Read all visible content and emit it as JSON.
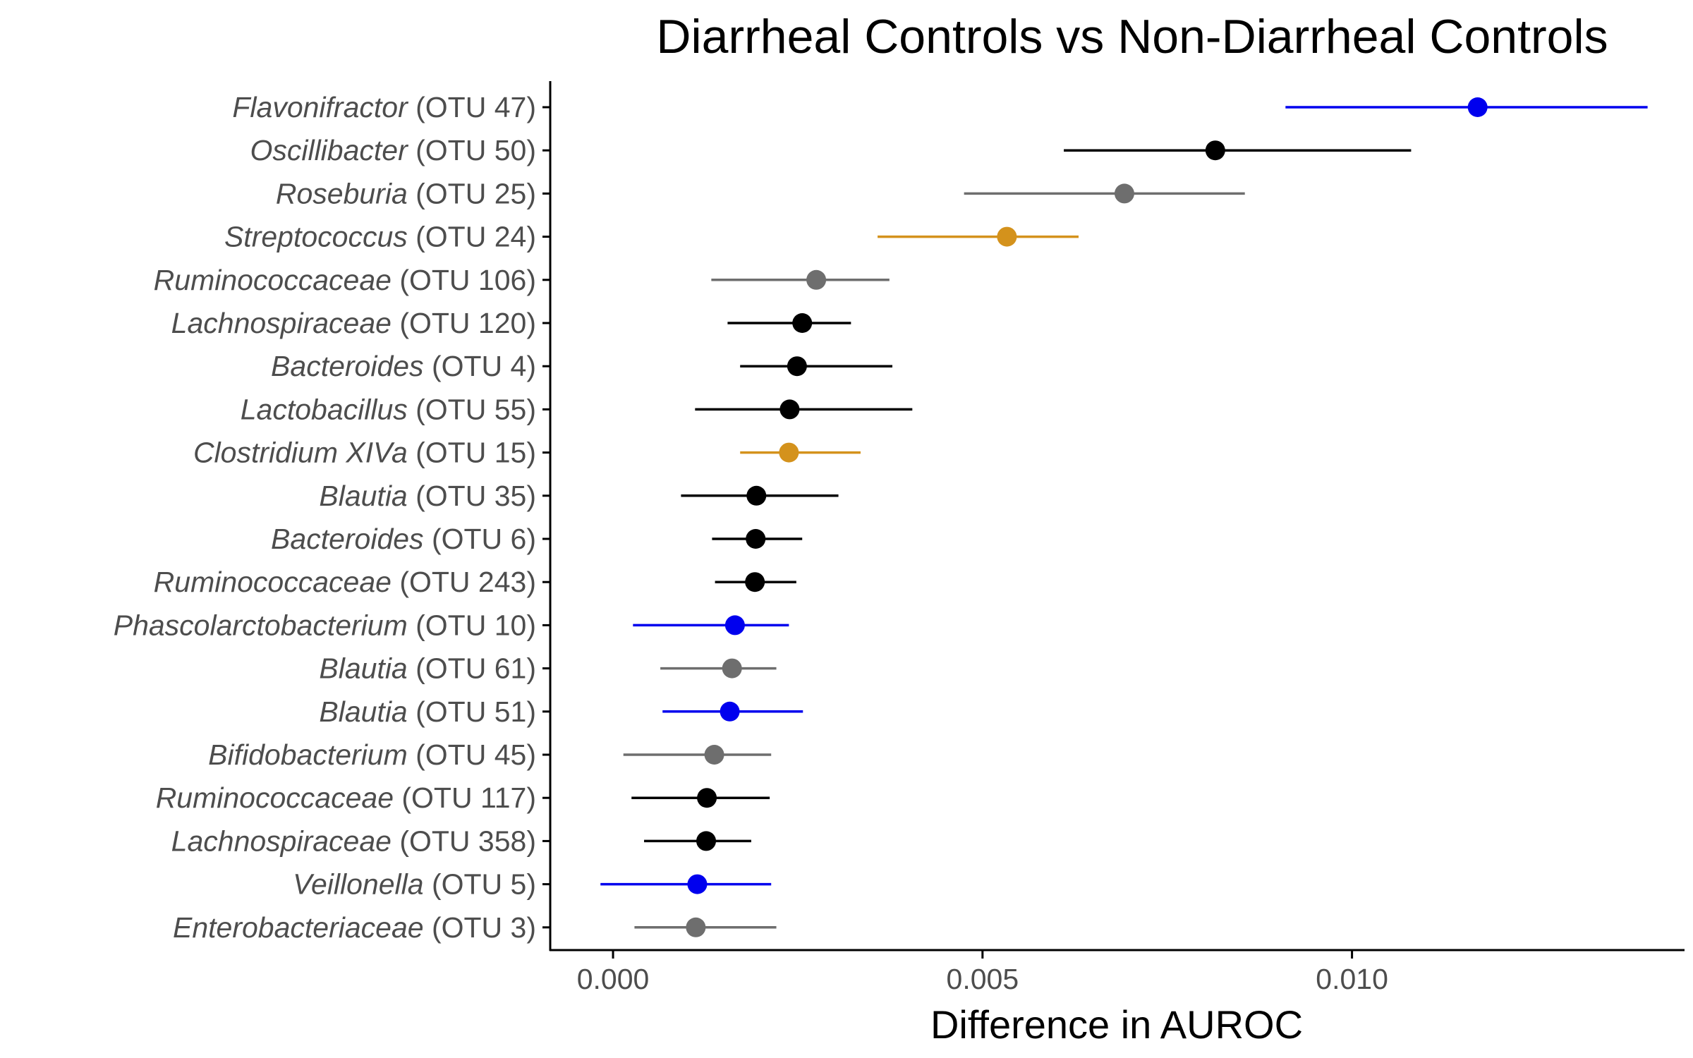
{
  "chart_data": {
    "type": "scatter",
    "title": "Diarrheal Controls vs Non-Diarrheal Controls",
    "xlabel": "Difference in AUROC",
    "ylabel": "",
    "xlim": [
      -0.00085,
      0.0145
    ],
    "xticks": [
      0.0,
      0.005,
      0.01
    ],
    "xtick_labels": [
      "0.000",
      "0.005",
      "0.010"
    ],
    "grid": false,
    "colors": {
      "blue": "#0000ee",
      "black": "#000000",
      "grey": "#6e6e6e",
      "gold": "#d4921c"
    },
    "points": [
      {
        "genus": "Flavonifractor",
        "otu": "(OTU 47)",
        "value": 0.0117,
        "low": 0.0091,
        "high": 0.014,
        "color": "blue"
      },
      {
        "genus": "Oscillibacter",
        "otu": "(OTU 50)",
        "value": 0.00815,
        "low": 0.0061,
        "high": 0.0108,
        "color": "black"
      },
      {
        "genus": "Roseburia",
        "otu": "(OTU 25)",
        "value": 0.00692,
        "low": 0.00475,
        "high": 0.00855,
        "color": "grey"
      },
      {
        "genus": "Streptococcus",
        "otu": "(OTU 24)",
        "value": 0.00533,
        "low": 0.00358,
        "high": 0.0063,
        "color": "gold"
      },
      {
        "genus": "Ruminococcaceae",
        "otu": "(OTU 106)",
        "value": 0.00275,
        "low": 0.00133,
        "high": 0.00374,
        "color": "grey"
      },
      {
        "genus": "Lachnospiraceae",
        "otu": "(OTU 120)",
        "value": 0.00256,
        "low": 0.00155,
        "high": 0.00322,
        "color": "black"
      },
      {
        "genus": "Bacteroides",
        "otu": "(OTU 4)",
        "value": 0.00249,
        "low": 0.00172,
        "high": 0.00378,
        "color": "black"
      },
      {
        "genus": "Lactobacillus",
        "otu": "(OTU 55)",
        "value": 0.00239,
        "low": 0.00111,
        "high": 0.00405,
        "color": "black"
      },
      {
        "genus": "Clostridium XIVa",
        "otu": "(OTU 15)",
        "value": 0.00238,
        "low": 0.00172,
        "high": 0.00335,
        "color": "gold"
      },
      {
        "genus": "Blautia",
        "otu": "(OTU 35)",
        "value": 0.00194,
        "low": 0.00092,
        "high": 0.00305,
        "color": "black"
      },
      {
        "genus": "Bacteroides",
        "otu": "(OTU 6)",
        "value": 0.00193,
        "low": 0.00134,
        "high": 0.00256,
        "color": "black"
      },
      {
        "genus": "Ruminococcaceae",
        "otu": "(OTU 243)",
        "value": 0.00192,
        "low": 0.00138,
        "high": 0.00248,
        "color": "black"
      },
      {
        "genus": "Phascolarctobacterium",
        "otu": "(OTU 10)",
        "value": 0.00165,
        "low": 0.00027,
        "high": 0.00238,
        "color": "blue"
      },
      {
        "genus": "Blautia",
        "otu": "(OTU 61)",
        "value": 0.00161,
        "low": 0.00064,
        "high": 0.00221,
        "color": "grey"
      },
      {
        "genus": "Blautia",
        "otu": "(OTU 51)",
        "value": 0.00158,
        "low": 0.00067,
        "high": 0.00257,
        "color": "blue"
      },
      {
        "genus": "Bifidobacterium",
        "otu": "(OTU 45)",
        "value": 0.00137,
        "low": 0.00014,
        "high": 0.00214,
        "color": "grey"
      },
      {
        "genus": "Ruminococcaceae",
        "otu": "(OTU 117)",
        "value": 0.00127,
        "low": 0.00025,
        "high": 0.00212,
        "color": "black"
      },
      {
        "genus": "Lachnospiraceae",
        "otu": "(OTU 358)",
        "value": 0.00126,
        "low": 0.00042,
        "high": 0.00187,
        "color": "black"
      },
      {
        "genus": "Veillonella",
        "otu": "(OTU 5)",
        "value": 0.00114,
        "low": -0.00017,
        "high": 0.00214,
        "color": "blue"
      },
      {
        "genus": "Enterobacteriaceae",
        "otu": "(OTU 3)",
        "value": 0.00112,
        "low": 0.00029,
        "high": 0.00221,
        "color": "grey"
      }
    ]
  }
}
